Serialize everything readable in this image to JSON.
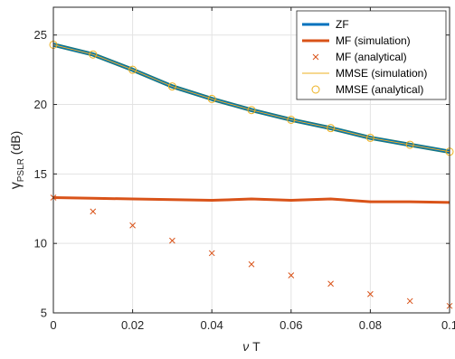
{
  "chart_data": {
    "type": "line",
    "xlabel": {
      "pre": "ν",
      "post": " T"
    },
    "ylabel": {
      "main": "γ",
      "sub": "PSLR",
      "post": " (dB)"
    },
    "xlim": [
      0,
      0.1
    ],
    "ylim": [
      5,
      27
    ],
    "xticks": [
      0,
      0.02,
      0.04,
      0.06,
      0.08,
      0.1
    ],
    "xtick_labels": [
      "0",
      "0.02",
      "0.04",
      "0.06",
      "0.08",
      "0.1"
    ],
    "yticks": [
      5,
      10,
      15,
      20,
      25
    ],
    "ytick_labels": [
      "5",
      "10",
      "15",
      "20",
      "25"
    ],
    "grid": true,
    "legend_position": "top-right",
    "x": [
      0,
      0.01,
      0.02,
      0.03,
      0.04,
      0.05,
      0.06,
      0.07,
      0.08,
      0.09,
      0.1
    ],
    "series": [
      {
        "name": "ZF",
        "style": "line",
        "color": "#0072BD",
        "values": [
          24.3,
          23.6,
          22.5,
          21.3,
          20.4,
          19.6,
          18.9,
          18.3,
          17.6,
          17.1,
          16.6
        ]
      },
      {
        "name": "MF (simulation)",
        "style": "line",
        "color": "#D95319",
        "values": [
          13.3,
          13.25,
          13.2,
          13.15,
          13.1,
          13.2,
          13.1,
          13.2,
          13.0,
          13.0,
          12.95
        ]
      },
      {
        "name": "MF (analytical)",
        "style": "x-marker",
        "color": "#D95319",
        "values": [
          13.3,
          12.3,
          11.3,
          10.2,
          9.3,
          8.5,
          7.7,
          7.1,
          6.35,
          5.85,
          5.5
        ]
      },
      {
        "name": "MMSE (simulation)",
        "style": "thin-line",
        "color": "#EDB120",
        "values": [
          24.3,
          23.6,
          22.5,
          21.3,
          20.4,
          19.6,
          18.9,
          18.3,
          17.6,
          17.1,
          16.6
        ]
      },
      {
        "name": "MMSE (analytical)",
        "style": "o-marker",
        "color": "#EDB120",
        "values": [
          24.3,
          23.6,
          22.5,
          21.3,
          20.4,
          19.6,
          18.9,
          18.3,
          17.6,
          17.1,
          16.6
        ]
      }
    ]
  }
}
